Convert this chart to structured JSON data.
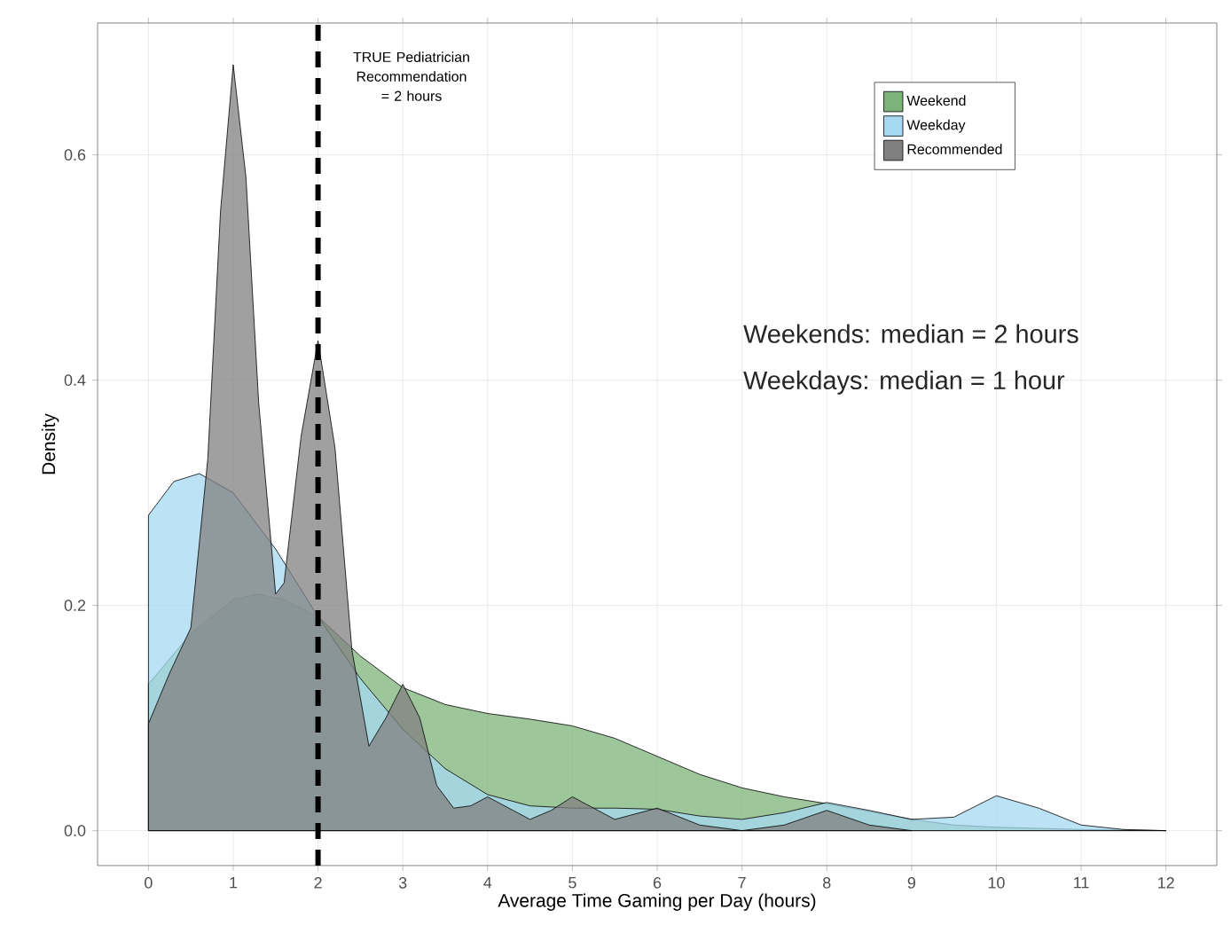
{
  "chart_data": {
    "type": "area",
    "xlabel": "Average Time Gaming per Day (hours)",
    "ylabel": "Density",
    "xlim": [
      -0.6,
      12.6
    ],
    "ylim": [
      -0.031,
      0.717
    ],
    "xticks": [
      0,
      1,
      2,
      3,
      4,
      5,
      6,
      7,
      8,
      9,
      10,
      11,
      12
    ],
    "yticks": [
      {
        "value": 0,
        "label": "0.0"
      },
      0.2,
      0.4,
      0.6
    ],
    "grid": true,
    "legend": "top right",
    "line_style": "solid",
    "series": [
      {
        "name": "Weekend",
        "color": "#7db37a",
        "x": [
          0,
          0.5,
          1,
          1.3,
          1.6,
          2,
          2.5,
          3,
          3.5,
          4,
          4.5,
          5,
          5.5,
          6,
          6.5,
          7,
          7.5,
          8,
          8.5,
          9,
          9.5,
          10,
          11,
          12
        ],
        "values": [
          0.13,
          0.175,
          0.205,
          0.21,
          0.205,
          0.19,
          0.155,
          0.127,
          0.112,
          0.104,
          0.099,
          0.093,
          0.082,
          0.066,
          0.05,
          0.038,
          0.03,
          0.024,
          0.017,
          0.01,
          0.005,
          0.003,
          0.001,
          0
        ]
      },
      {
        "name": "Weekday",
        "color": "#a6d8f2",
        "x": [
          0,
          0.3,
          0.6,
          1,
          1.5,
          2,
          2.5,
          3,
          3.5,
          4,
          4.5,
          5,
          5.5,
          6,
          6.5,
          7,
          7.5,
          8,
          8.5,
          9,
          9.5,
          10,
          10.5,
          11,
          11.5,
          12
        ],
        "values": [
          0.28,
          0.31,
          0.317,
          0.3,
          0.25,
          0.19,
          0.135,
          0.09,
          0.055,
          0.032,
          0.022,
          0.02,
          0.02,
          0.019,
          0.013,
          0.01,
          0.016,
          0.025,
          0.018,
          0.01,
          0.012,
          0.031,
          0.02,
          0.005,
          0.001,
          0
        ]
      },
      {
        "name": "Recommended",
        "color": "#808080",
        "x": [
          0,
          0.25,
          0.5,
          0.7,
          0.85,
          1,
          1.15,
          1.3,
          1.5,
          1.6,
          1.8,
          2,
          2.2,
          2.4,
          2.6,
          2.8,
          3,
          3.2,
          3.4,
          3.6,
          3.8,
          4,
          4.25,
          4.5,
          4.75,
          5,
          5.25,
          5.5,
          5.75,
          6,
          6.5,
          7,
          7.5,
          8,
          8.5,
          9
        ],
        "values": [
          0.095,
          0.14,
          0.18,
          0.33,
          0.55,
          0.68,
          0.58,
          0.38,
          0.21,
          0.22,
          0.35,
          0.435,
          0.34,
          0.16,
          0.075,
          0.1,
          0.13,
          0.1,
          0.04,
          0.02,
          0.022,
          0.03,
          0.02,
          0.01,
          0.018,
          0.03,
          0.02,
          0.01,
          0.015,
          0.02,
          0.005,
          0,
          0.005,
          0.018,
          0.005,
          0
        ]
      }
    ],
    "ref_lines": [
      {
        "axis": "x",
        "value": 2,
        "label": "TRUE Pediatrician Recommendation = 2 hours",
        "line_style": "dashed",
        "color": "#000000"
      }
    ],
    "annotations": [
      "Weekends: median = 2 hours",
      "Weekdays: median = 1 hour"
    ]
  }
}
